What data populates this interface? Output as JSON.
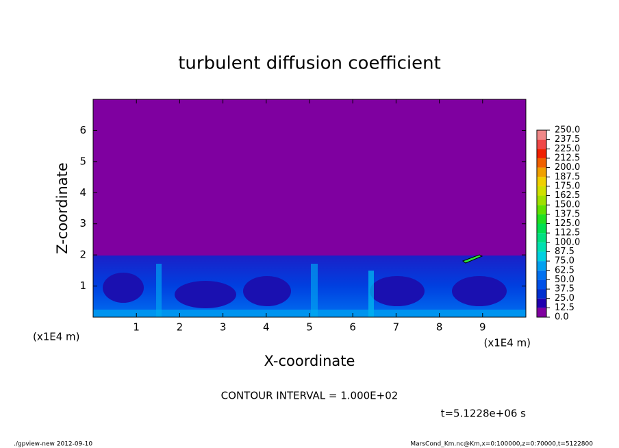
{
  "chart_data": {
    "type": "contour",
    "title": "turbulent diffusion coefficient",
    "xlabel": "X-coordinate",
    "ylabel": "Z-coordinate",
    "xunit": "(x1E4 m)",
    "yunit": "(x1E4 m)",
    "xlim": [
      0,
      10
    ],
    "ylim": [
      0,
      7
    ],
    "xticks": [
      1,
      2,
      3,
      4,
      5,
      6,
      7,
      8,
      9
    ],
    "yticks": [
      1,
      2,
      3,
      4,
      5,
      6
    ],
    "levels": [
      {
        "value": 0,
        "label": "0.0"
      },
      {
        "value": 12.5,
        "label": "12.5"
      },
      {
        "value": 25,
        "label": "25.0"
      },
      {
        "value": 37.5,
        "label": "37.5"
      },
      {
        "value": 50,
        "label": "50.0"
      },
      {
        "value": 62.5,
        "label": "62.5"
      },
      {
        "value": 75,
        "label": "75.0"
      },
      {
        "value": 87.5,
        "label": "87.5"
      },
      {
        "value": 100,
        "label": "100.0"
      },
      {
        "value": 112.5,
        "label": "112.5"
      },
      {
        "value": 125,
        "label": "125.0"
      },
      {
        "value": 137.5,
        "label": "137.5"
      },
      {
        "value": 150,
        "label": "150.0"
      },
      {
        "value": 162.5,
        "label": "162.5"
      },
      {
        "value": 175,
        "label": "175.0"
      },
      {
        "value": 187.5,
        "label": "187.5"
      },
      {
        "value": 200,
        "label": "200.0"
      },
      {
        "value": 212.5,
        "label": "212.5"
      },
      {
        "value": 225,
        "label": "225.0"
      },
      {
        "value": 237.5,
        "label": "237.5"
      },
      {
        "value": 250,
        "label": "250.0"
      }
    ],
    "level_colors": [
      "#8000a0",
      "#2000b0",
      "#0030d0",
      "#0050e8",
      "#0070f0",
      "#00a0f0",
      "#00d0e0",
      "#00e0b0",
      "#00e080",
      "#00e050",
      "#20e020",
      "#60e000",
      "#a0e000",
      "#d0e000",
      "#f0d000",
      "#f0a000",
      "#f06000",
      "#f02000",
      "#f04848",
      "#f08888"
    ],
    "contour_interval": "CONTOUR INTERVAL = 1.000E+02",
    "time_label": "t=5.1228e+06 s",
    "footer_left": "./gpview-new  2012-09-10",
    "footer_right": "MarsCond_Km.nc@Km,x=0:100000,z=0:70000,t=5122800"
  }
}
